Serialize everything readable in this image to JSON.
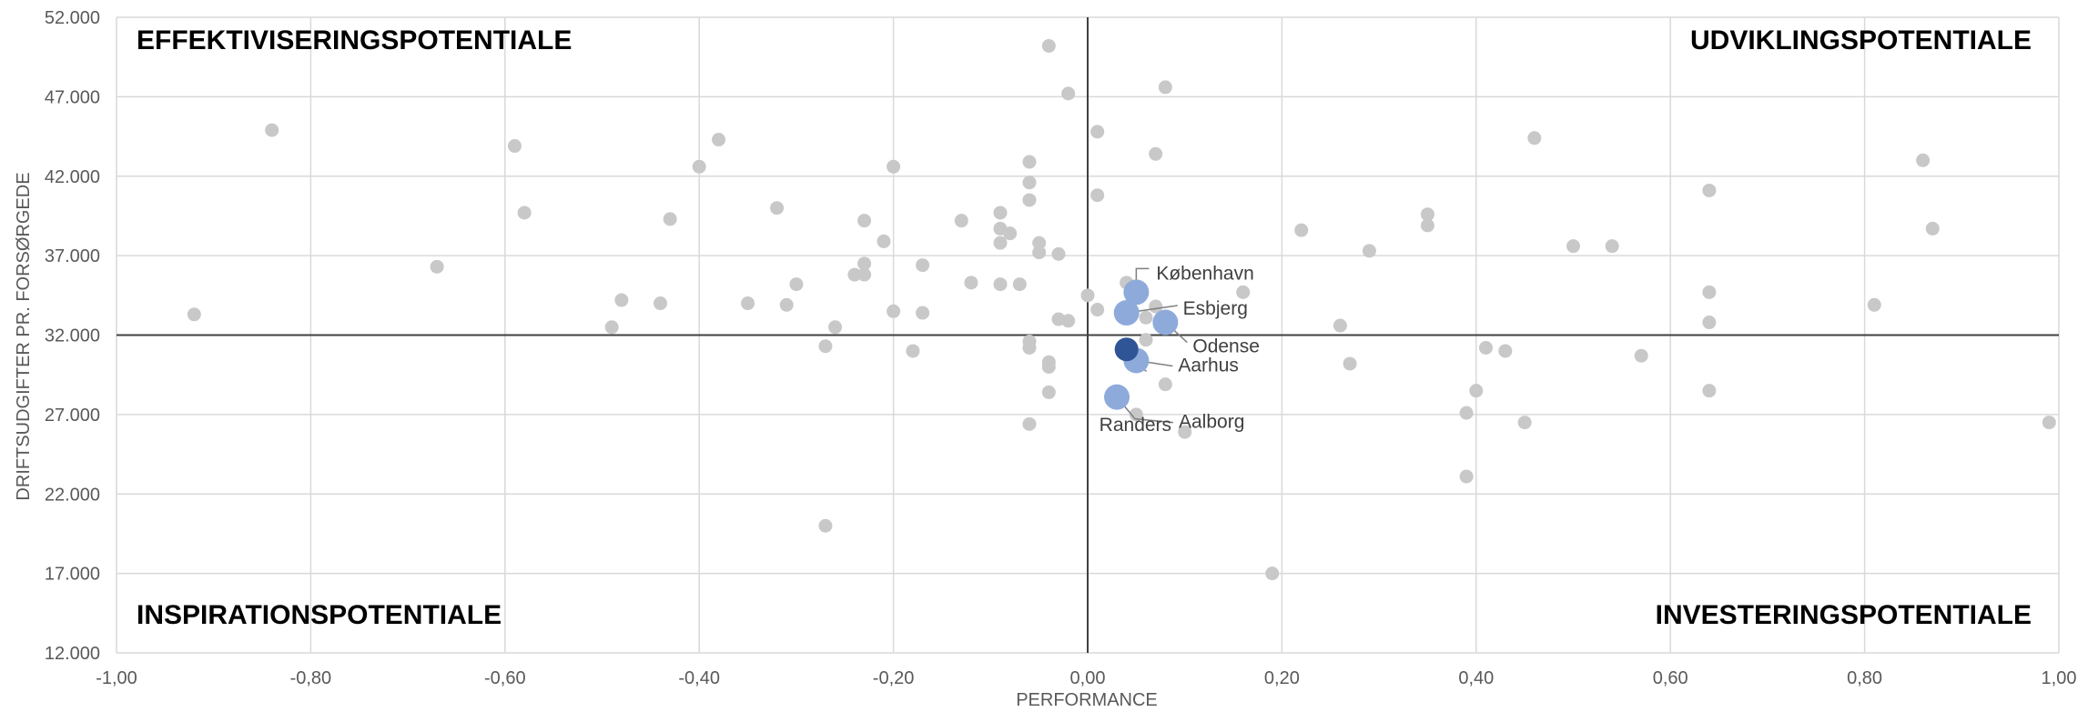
{
  "chart_data": {
    "type": "scatter",
    "xlabel": "PERFORMANCE",
    "ylabel": "DRIFTSUDGIFTER PR. FORSØRGEDE",
    "xlim": [
      -1.0,
      1.0
    ],
    "ylim": [
      12000,
      52000
    ],
    "x_ticks": [
      -1.0,
      -0.8,
      -0.6,
      -0.4,
      -0.2,
      0.0,
      0.2,
      0.4,
      0.6,
      0.8,
      1.0
    ],
    "x_tick_labels": [
      "-1,00",
      "-0,80",
      "-0,60",
      "-0,40",
      "-0,20",
      "0,00",
      "0,20",
      "0,40",
      "0,60",
      "0,80",
      "1,00"
    ],
    "y_ticks": [
      12000,
      17000,
      22000,
      27000,
      32000,
      37000,
      42000,
      47000,
      52000
    ],
    "y_tick_labels": [
      "12.000",
      "17.000",
      "22.000",
      "27.000",
      "32.000",
      "37.000",
      "42.000",
      "47.000",
      "52.000"
    ],
    "grid": true,
    "reference_lines": {
      "x": 0.0,
      "y": 32000
    },
    "quadrant_labels": {
      "top_left": "EFFEKTIVISERINGSPOTENTIALE",
      "top_right": "UDVIKLINGSPOTENTIALE",
      "bottom_left": "INSPIRATIONSPOTENTIALE",
      "bottom_right": "INVESTERINGSPOTENTIALE"
    },
    "colors": {
      "other": "#c8c8c8",
      "highlight": "#8eaadb",
      "selected": "#2f5597",
      "grid": "#d9d9d9",
      "reference": "#404040",
      "leader": "#7f7f7f"
    },
    "series": [
      {
        "points": [
          [
            -0.92,
            33300
          ],
          [
            -0.84,
            44900
          ],
          [
            -0.67,
            36300
          ],
          [
            -0.59,
            43900
          ],
          [
            -0.58,
            39700
          ],
          [
            -0.49,
            32500
          ],
          [
            -0.48,
            34200
          ],
          [
            -0.44,
            34000
          ],
          [
            -0.43,
            39300
          ],
          [
            -0.4,
            42600
          ],
          [
            -0.38,
            44300
          ],
          [
            -0.35,
            34000
          ],
          [
            -0.32,
            40000
          ],
          [
            -0.31,
            33900
          ],
          [
            -0.3,
            35200
          ],
          [
            -0.27,
            31300
          ],
          [
            -0.27,
            20000
          ],
          [
            -0.26,
            32500
          ],
          [
            -0.24,
            35800
          ],
          [
            -0.23,
            39200
          ],
          [
            -0.23,
            36500
          ],
          [
            -0.23,
            35800
          ],
          [
            -0.21,
            37900
          ],
          [
            -0.2,
            42600
          ],
          [
            -0.2,
            33500
          ],
          [
            -0.18,
            31000
          ],
          [
            -0.17,
            36400
          ],
          [
            -0.17,
            33400
          ],
          [
            -0.13,
            39200
          ],
          [
            -0.12,
            35300
          ],
          [
            -0.09,
            39700
          ],
          [
            -0.09,
            38700
          ],
          [
            -0.09,
            37800
          ],
          [
            -0.09,
            35200
          ],
          [
            -0.08,
            38400
          ],
          [
            -0.07,
            35200
          ],
          [
            -0.06,
            42900
          ],
          [
            -0.06,
            41600
          ],
          [
            -0.06,
            40500
          ],
          [
            -0.06,
            31600
          ],
          [
            -0.06,
            31200
          ],
          [
            -0.06,
            26400
          ],
          [
            -0.05,
            37800
          ],
          [
            -0.05,
            37200
          ],
          [
            -0.04,
            50200
          ],
          [
            -0.04,
            30300
          ],
          [
            -0.04,
            30000
          ],
          [
            -0.04,
            28400
          ],
          [
            -0.03,
            37100
          ],
          [
            -0.03,
            33000
          ],
          [
            -0.02,
            47200
          ],
          [
            -0.02,
            32900
          ],
          [
            0.0,
            34500
          ],
          [
            0.01,
            44800
          ],
          [
            0.01,
            40800
          ],
          [
            0.01,
            33600
          ],
          [
            0.04,
            35300
          ],
          [
            0.05,
            27000
          ],
          [
            0.06,
            31700
          ],
          [
            0.06,
            33100
          ],
          [
            0.07,
            43400
          ],
          [
            0.07,
            33800
          ],
          [
            0.08,
            47600
          ],
          [
            0.08,
            28900
          ],
          [
            0.1,
            25900
          ],
          [
            0.16,
            34700
          ],
          [
            0.19,
            17000
          ],
          [
            0.22,
            38600
          ],
          [
            0.26,
            32600
          ],
          [
            0.27,
            30200
          ],
          [
            0.29,
            37300
          ],
          [
            0.35,
            39600
          ],
          [
            0.35,
            38900
          ],
          [
            0.39,
            27100
          ],
          [
            0.39,
            23100
          ],
          [
            0.4,
            28500
          ],
          [
            0.41,
            31200
          ],
          [
            0.43,
            31000
          ],
          [
            0.45,
            26500
          ],
          [
            0.46,
            44400
          ],
          [
            0.5,
            37600
          ],
          [
            0.54,
            37600
          ],
          [
            0.57,
            30700
          ],
          [
            0.64,
            41100
          ],
          [
            0.64,
            34700
          ],
          [
            0.64,
            32800
          ],
          [
            0.64,
            28500
          ],
          [
            0.81,
            33900
          ],
          [
            0.86,
            43000
          ],
          [
            0.87,
            38700
          ],
          [
            0.99,
            26500
          ]
        ]
      },
      {
        "points": [
          {
            "label": "København",
            "x": 0.05,
            "y": 34700
          },
          {
            "label": "Esbjerg",
            "x": 0.04,
            "y": 33400
          },
          {
            "label": "Odense",
            "x": 0.08,
            "y": 32800
          },
          {
            "label": "Aarhus",
            "x": 0.05,
            "y": 30400
          },
          {
            "label": "Aalborg",
            "x": 0.03,
            "y": 28100
          },
          {
            "label": "Randers",
            "x": 0.04,
            "y": 31100
          }
        ]
      }
    ]
  }
}
